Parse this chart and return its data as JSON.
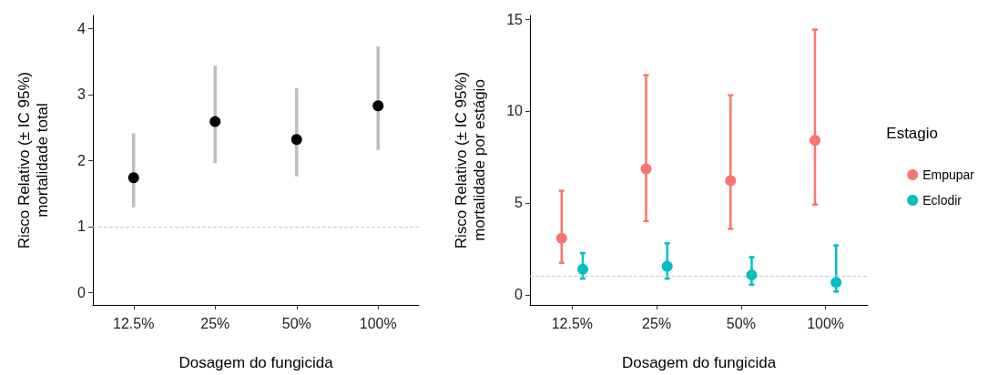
{
  "chart_data": [
    {
      "type": "scatter",
      "xlabel": "Dosagem do fungicida",
      "ylabel": "Risco Relativo (± IC 95%)\nmortalidade total",
      "categories": [
        "12.5%",
        "25%",
        "50%",
        "100%"
      ],
      "values": [
        1.74,
        2.59,
        2.32,
        2.83
      ],
      "errors": [
        [
          1.29,
          2.41
        ],
        [
          1.96,
          3.44
        ],
        [
          1.76,
          3.1
        ],
        [
          2.16,
          3.73
        ]
      ],
      "color": "#000000",
      "ylim": [
        -0.19,
        4.2
      ],
      "yticks": [
        0,
        1,
        2,
        3,
        4
      ],
      "grid": false,
      "marker": "circle",
      "ref_lines": [
        {
          "axis": "y",
          "value": 1,
          "color": "#c8c8c8",
          "line_style": "dashed"
        }
      ]
    },
    {
      "type": "scatter",
      "xlabel": "Dosagem do fungicida",
      "ylabel": "Risco Relativo (± IC 95%)\nmortalidade por estágio",
      "legend_title": "Estagio",
      "categories": [
        "12.5%",
        "25%",
        "50%",
        "100%"
      ],
      "series": [
        {
          "name": "Empupar",
          "color": "#f8766d",
          "values": [
            3.08,
            6.85,
            6.21,
            8.4
          ],
          "errors": [
            [
              1.74,
              5.66
            ],
            [
              4.01,
              11.95
            ],
            [
              3.59,
              10.86
            ],
            [
              4.91,
              14.43
            ]
          ]
        },
        {
          "name": "Eclodir",
          "color": "#00bfc4",
          "values": [
            1.39,
            1.55,
            1.08,
            0.68
          ],
          "errors": [
            [
              0.88,
              2.27
            ],
            [
              0.88,
              2.8
            ],
            [
              0.55,
              2.05
            ],
            [
              0.18,
              2.69
            ]
          ]
        }
      ],
      "ylim": [
        -0.55,
        15.2
      ],
      "yticks": [
        0,
        5,
        10,
        15
      ],
      "grid": false,
      "legend": "right",
      "marker": "circle",
      "ref_lines": [
        {
          "axis": "y",
          "value": 1,
          "color": "#c8c8c8",
          "line_style": "dashed"
        }
      ]
    }
  ]
}
